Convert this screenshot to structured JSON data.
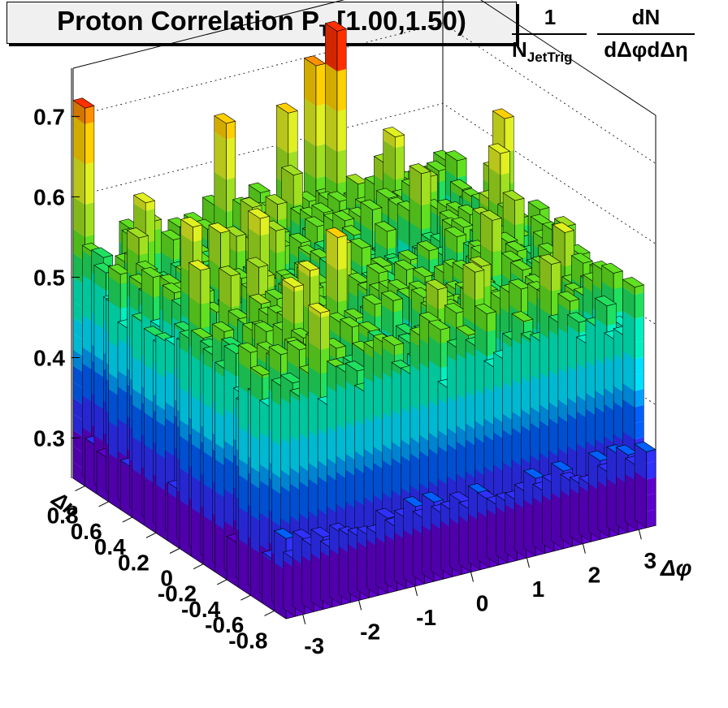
{
  "chart_data": {
    "type": "lego3d",
    "title_main": "Proton Correlation P",
    "title_sub": "T",
    "title_range": " [1.00,1.50)",
    "zlabel": {
      "num_left": "1",
      "den_left": "N",
      "den_left_sub": "JetTrig",
      "num_right": "dN",
      "den_right": "dΔφdΔη"
    },
    "xlabel": "Δφ",
    "ylabel": "Δη",
    "xlim": [
      -3.3,
      3.3
    ],
    "ylim": [
      -0.9,
      0.9
    ],
    "zlim": [
      0.25,
      0.76
    ],
    "x_ticks": [
      "-3",
      "-2",
      "-1",
      "0",
      "1",
      "2",
      "3"
    ],
    "y_ticks": [
      "0.8",
      "0.6",
      "0.4",
      "0.2",
      "0",
      "-0.2",
      "-0.4",
      "-0.6",
      "-0.8"
    ],
    "z_ticks": [
      "0.3",
      "0.4",
      "0.5",
      "0.6",
      "0.7"
    ],
    "nx": 40,
    "ny": 18,
    "peak_values": [
      0.72,
      0.61,
      0.65,
      0.67,
      0.7,
      0.75,
      0.58,
      0.6
    ],
    "typical_value_range": [
      0.46,
      0.58
    ],
    "palette": [
      "#6000d0",
      "#3030ff",
      "#0060ff",
      "#00a0ff",
      "#00e0ff",
      "#00f0c0",
      "#20e060",
      "#60e020",
      "#a0e020",
      "#e0f020",
      "#ffd000",
      "#ff9000",
      "#ff3000"
    ]
  }
}
